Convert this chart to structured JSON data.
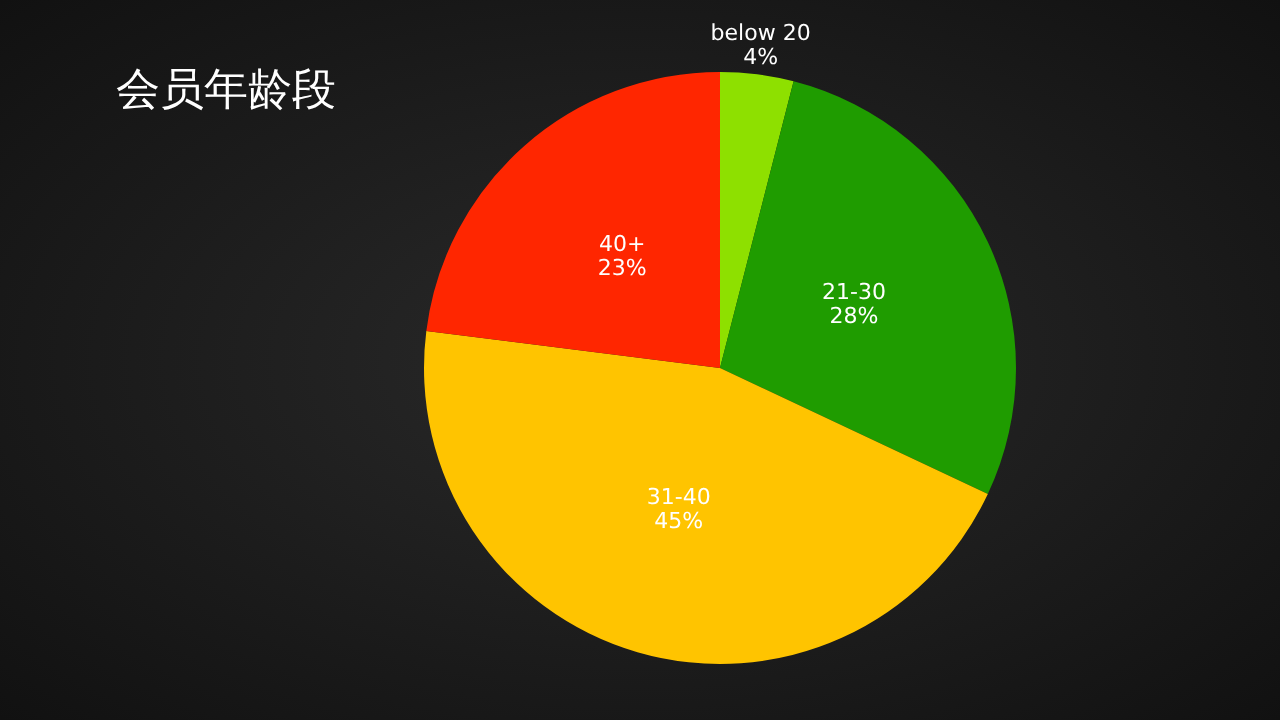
{
  "chart_data": {
    "type": "pie",
    "title": "会员年龄段",
    "categories": [
      "below 20",
      "21-30",
      "31-40",
      "40+"
    ],
    "values": [
      4,
      28,
      45,
      23
    ],
    "value_labels": [
      "4%",
      "28%",
      "45%",
      "23%"
    ],
    "colors": [
      "#8ee000",
      "#1f9c00",
      "#ffc400",
      "#ff2600"
    ],
    "legend": false
  }
}
